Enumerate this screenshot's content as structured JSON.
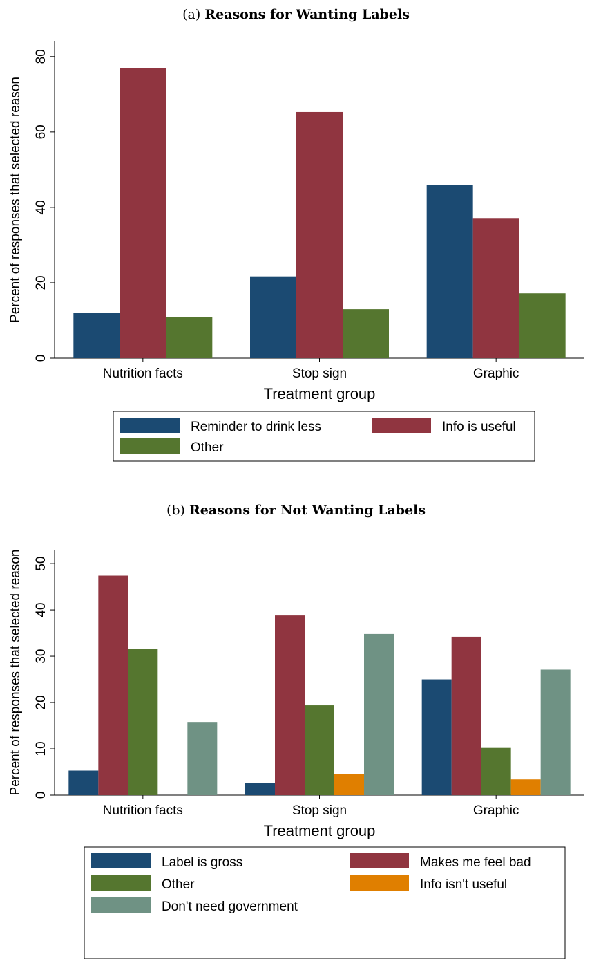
{
  "colors": {
    "blue": "#1b4a72",
    "red": "#903540",
    "green": "#55762f",
    "orange": "#e07f00",
    "gray": "#6f9284"
  },
  "panels": [
    {
      "prefix": "(a)",
      "title": "Reasons for Wanting Labels"
    },
    {
      "prefix": "(b)",
      "title": "Reasons for Not Wanting Labels"
    }
  ],
  "chart_data": [
    {
      "type": "bar",
      "title": "Reasons for Wanting Labels",
      "xlabel": "Treatment group",
      "ylabel": "Percent of responses that selected reason",
      "categories": [
        "Nutrition facts",
        "Stop sign",
        "Graphic"
      ],
      "ylim": [
        0,
        84
      ],
      "yticks": [
        0,
        20,
        40,
        60,
        80
      ],
      "grid": false,
      "legend_position": "bottom",
      "series": [
        {
          "name": "Reminder to drink less",
          "color": "#1b4a72",
          "values": [
            12,
            21.7,
            46
          ]
        },
        {
          "name": "Info is useful",
          "color": "#903540",
          "values": [
            77,
            65.3,
            37
          ]
        },
        {
          "name": "Other",
          "color": "#55762f",
          "values": [
            11,
            13,
            17.2
          ]
        }
      ]
    },
    {
      "type": "bar",
      "title": "Reasons for Not Wanting Labels",
      "xlabel": "Treatment group",
      "ylabel": "Percent of responses that selected reason",
      "categories": [
        "Nutrition facts",
        "Stop sign",
        "Graphic"
      ],
      "ylim": [
        0,
        53
      ],
      "yticks": [
        0,
        10,
        20,
        30,
        40,
        50
      ],
      "grid": false,
      "legend_position": "bottom",
      "series": [
        {
          "name": "Label is gross",
          "color": "#1b4a72",
          "values": [
            5.3,
            2.6,
            25
          ]
        },
        {
          "name": "Makes me feel bad",
          "color": "#903540",
          "values": [
            47.4,
            38.8,
            34.2
          ]
        },
        {
          "name": "Other",
          "color": "#55762f",
          "values": [
            31.6,
            19.4,
            10.2
          ]
        },
        {
          "name": "Info isn't useful",
          "color": "#e07f00",
          "values": [
            0,
            4.5,
            3.4
          ]
        },
        {
          "name": "Don't need government",
          "color": "#6f9284",
          "values": [
            15.8,
            34.8,
            27.1
          ]
        }
      ]
    }
  ]
}
